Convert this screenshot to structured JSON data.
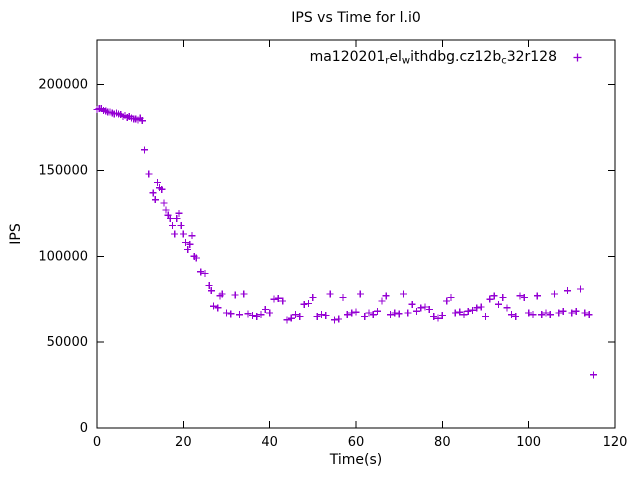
{
  "title": "IPS vs Time for l.i0",
  "legend": {
    "label_raw": "ma120201_rel_withdbg.cz12b_c32r128",
    "segments": [
      {
        "text": "ma120201",
        "sub": false
      },
      {
        "text": "r",
        "sub": true
      },
      {
        "text": "el",
        "sub": false
      },
      {
        "text": "w",
        "sub": true
      },
      {
        "text": "ithdbg.cz12b",
        "sub": false
      },
      {
        "text": "c",
        "sub": true
      },
      {
        "text": "32r128",
        "sub": false
      }
    ],
    "marker": "plus",
    "marker_color": "#9400d3"
  },
  "chart_data": {
    "type": "scatter",
    "title": "IPS vs Time for l.i0",
    "xlabel": "Time(s)",
    "ylabel": "IPS",
    "xlim": [
      0,
      120
    ],
    "ylim": [
      0,
      226000
    ],
    "xticks": [
      0,
      20,
      40,
      60,
      80,
      100,
      120
    ],
    "yticks": [
      0,
      50000,
      100000,
      150000,
      200000
    ],
    "grid": false,
    "legend_position": "top-right-inside",
    "marker": "plus",
    "marker_color": "#9400d3",
    "series": [
      {
        "name": "ma120201_rel_withdbg.cz12b_c32r128",
        "points": [
          [
            0,
            185500
          ],
          [
            0.5,
            186000
          ],
          [
            1,
            186000
          ],
          [
            1.5,
            185000
          ],
          [
            2,
            184500
          ],
          [
            2.5,
            184000
          ],
          [
            3,
            184000
          ],
          [
            3.5,
            183500
          ],
          [
            4,
            183000
          ],
          [
            4.5,
            183500
          ],
          [
            5,
            183000
          ],
          [
            5.5,
            182500
          ],
          [
            6,
            181500
          ],
          [
            6.5,
            182000
          ],
          [
            7,
            181000
          ],
          [
            7.5,
            181500
          ],
          [
            8,
            180500
          ],
          [
            8.5,
            180000
          ],
          [
            9,
            180000
          ],
          [
            9.5,
            179500
          ],
          [
            10,
            180500
          ],
          [
            10.5,
            179000
          ],
          [
            11,
            162000
          ],
          [
            12,
            148000
          ],
          [
            13,
            137000
          ],
          [
            13.5,
            133000
          ],
          [
            14,
            143000
          ],
          [
            14.5,
            140000
          ],
          [
            15,
            139000
          ],
          [
            15.5,
            131000
          ],
          [
            16,
            127000
          ],
          [
            16.5,
            124000
          ],
          [
            17,
            122000
          ],
          [
            17.5,
            118000
          ],
          [
            18,
            113000
          ],
          [
            18.5,
            122000
          ],
          [
            19,
            125000
          ],
          [
            19.5,
            118000
          ],
          [
            20,
            113000
          ],
          [
            20.5,
            108000
          ],
          [
            21,
            104000
          ],
          [
            21.5,
            107000
          ],
          [
            22,
            112000
          ],
          [
            22.5,
            100000
          ],
          [
            23,
            99000
          ],
          [
            24,
            91000
          ],
          [
            25,
            90000
          ],
          [
            26,
            83000
          ],
          [
            26.5,
            80000
          ],
          [
            27,
            71000
          ],
          [
            28,
            70000
          ],
          [
            28.5,
            77000
          ],
          [
            29,
            78000
          ],
          [
            30,
            67000
          ],
          [
            31,
            66500
          ],
          [
            32,
            77500
          ],
          [
            33,
            66000
          ],
          [
            34,
            78000
          ],
          [
            35,
            66500
          ],
          [
            36,
            65500
          ],
          [
            37,
            65000
          ],
          [
            38,
            66000
          ],
          [
            39,
            69000
          ],
          [
            40,
            67000
          ],
          [
            41,
            75000
          ],
          [
            42,
            75500
          ],
          [
            43,
            74000
          ],
          [
            44,
            63000
          ],
          [
            45,
            64000
          ],
          [
            46,
            66000
          ],
          [
            47,
            65000
          ],
          [
            48,
            72000
          ],
          [
            49,
            72500
          ],
          [
            50,
            76000
          ],
          [
            51,
            65000
          ],
          [
            52,
            66000
          ],
          [
            53,
            65500
          ],
          [
            54,
            78000
          ],
          [
            55,
            63000
          ],
          [
            56,
            63500
          ],
          [
            57,
            76000
          ],
          [
            58,
            66000
          ],
          [
            59,
            67000
          ],
          [
            60,
            67500
          ],
          [
            61,
            78000
          ],
          [
            62,
            65000
          ],
          [
            63,
            67000
          ],
          [
            64,
            66000
          ],
          [
            65,
            68000
          ],
          [
            66,
            74000
          ],
          [
            67,
            77000
          ],
          [
            68,
            66000
          ],
          [
            69,
            67000
          ],
          [
            70,
            66500
          ],
          [
            71,
            78000
          ],
          [
            72,
            67000
          ],
          [
            73,
            72000
          ],
          [
            74,
            68000
          ],
          [
            75,
            70000
          ],
          [
            76,
            70500
          ],
          [
            77,
            69000
          ],
          [
            78,
            65000
          ],
          [
            79,
            64000
          ],
          [
            80,
            65500
          ],
          [
            81,
            74000
          ],
          [
            82,
            76000
          ],
          [
            83,
            67000
          ],
          [
            84,
            67500
          ],
          [
            85,
            66000
          ],
          [
            86,
            68000
          ],
          [
            87,
            68500
          ],
          [
            88,
            70000
          ],
          [
            89,
            70500
          ],
          [
            90,
            65000
          ],
          [
            91,
            75000
          ],
          [
            92,
            77000
          ],
          [
            93,
            72000
          ],
          [
            94,
            76000
          ],
          [
            95,
            70000
          ],
          [
            96,
            66000
          ],
          [
            97,
            65000
          ],
          [
            98,
            77000
          ],
          [
            99,
            76000
          ],
          [
            100,
            67000
          ],
          [
            101,
            66000
          ],
          [
            102,
            77000
          ],
          [
            103,
            66000
          ],
          [
            104,
            67000
          ],
          [
            105,
            66000
          ],
          [
            106,
            78000
          ],
          [
            107,
            67000
          ],
          [
            108,
            68000
          ],
          [
            109,
            80000
          ],
          [
            110,
            67000
          ],
          [
            111,
            68000
          ],
          [
            112,
            81000
          ],
          [
            113,
            67000
          ],
          [
            114,
            66000
          ],
          [
            115,
            31000
          ]
        ]
      }
    ]
  }
}
